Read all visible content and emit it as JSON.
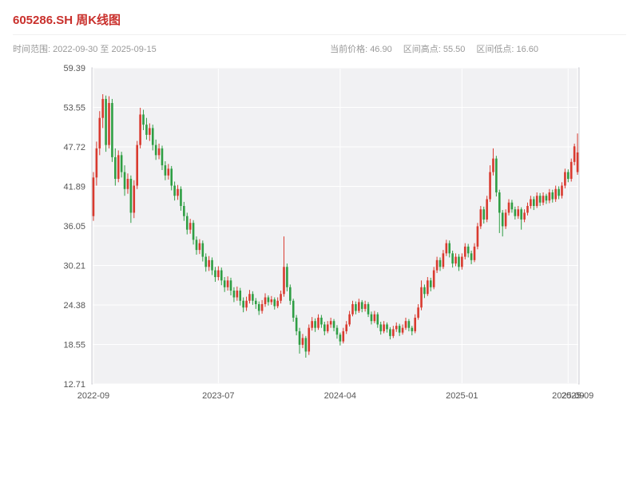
{
  "header": {
    "title": "605286.SH 周K线图",
    "time_range": "时间范围: 2022-09-30 至 2025-09-15",
    "current_price": "当前价格: 46.90",
    "range_high": "区间高点: 55.50",
    "range_low": "区间低点: 16.60"
  },
  "chart_data": {
    "type": "candlestick",
    "title": "605286.SH 周K线图",
    "frequency": "weekly",
    "date_start": "2022-09-30",
    "date_end": "2025-09-15",
    "current_price": 46.9,
    "range_high": 55.5,
    "range_low": 16.6,
    "colors": {
      "up": "#d93a2f",
      "down": "#2f9e44",
      "panel": "#f1f1f3",
      "grid": "#ffffff",
      "spine": "#cfcfd4",
      "tick_text": "#555555"
    },
    "y_axis": {
      "min": 12.71,
      "max": 59.39,
      "ticks": [
        12.71,
        18.55,
        24.38,
        30.21,
        36.05,
        41.89,
        47.72,
        53.55,
        59.39
      ]
    },
    "x_axis": {
      "ticks": [
        {
          "index": 0,
          "label": "2022-09"
        },
        {
          "index": 40,
          "label": "2023-07"
        },
        {
          "index": 79,
          "label": "2024-04"
        },
        {
          "index": 118,
          "label": "2025-01"
        },
        {
          "index": 152,
          "label": "2025-09"
        },
        {
          "index": 155,
          "label": "2025-09"
        }
      ]
    },
    "candles": [
      [
        37.5,
        44.0,
        36.8,
        43.2
      ],
      [
        43.2,
        48.5,
        42.0,
        47.5
      ],
      [
        47.5,
        53.0,
        46.5,
        52.0
      ],
      [
        52.0,
        55.5,
        50.5,
        54.8
      ],
      [
        54.8,
        55.3,
        47.0,
        48.0
      ],
      [
        48.0,
        55.2,
        47.5,
        54.2
      ],
      [
        54.2,
        54.8,
        45.5,
        46.2
      ],
      [
        46.2,
        47.5,
        42.0,
        43.0
      ],
      [
        43.0,
        47.2,
        42.5,
        46.5
      ],
      [
        46.5,
        47.0,
        43.2,
        44.0
      ],
      [
        44.0,
        45.0,
        40.5,
        41.5
      ],
      [
        41.5,
        43.8,
        40.8,
        43.0
      ],
      [
        43.0,
        43.5,
        36.5,
        38.0
      ],
      [
        38.0,
        42.8,
        37.2,
        42.0
      ],
      [
        42.0,
        48.6,
        41.5,
        48.0
      ],
      [
        48.0,
        53.5,
        47.5,
        52.5
      ],
      [
        52.5,
        53.2,
        50.2,
        51.0
      ],
      [
        51.0,
        52.0,
        48.8,
        49.5
      ],
      [
        49.5,
        51.2,
        48.6,
        50.5
      ],
      [
        50.5,
        51.0,
        47.2,
        48.0
      ],
      [
        48.0,
        48.8,
        45.8,
        46.5
      ],
      [
        46.5,
        48.2,
        45.9,
        47.5
      ],
      [
        47.5,
        47.9,
        44.3,
        45.0
      ],
      [
        45.0,
        45.6,
        42.8,
        43.5
      ],
      [
        43.5,
        45.2,
        42.9,
        44.5
      ],
      [
        44.5,
        44.9,
        41.3,
        42.0
      ],
      [
        42.0,
        42.6,
        39.8,
        40.5
      ],
      [
        40.5,
        42.1,
        39.9,
        41.5
      ],
      [
        41.5,
        41.9,
        38.3,
        39.0
      ],
      [
        39.0,
        39.6,
        36.8,
        37.5
      ],
      [
        37.5,
        38.0,
        34.8,
        35.5
      ],
      [
        35.5,
        37.1,
        34.9,
        36.5
      ],
      [
        36.5,
        36.9,
        33.3,
        34.0
      ],
      [
        34.0,
        34.5,
        31.8,
        32.5
      ],
      [
        32.5,
        34.1,
        31.9,
        33.5
      ],
      [
        33.5,
        33.9,
        30.8,
        31.5
      ],
      [
        31.5,
        32.0,
        29.3,
        30.0
      ],
      [
        30.0,
        31.6,
        29.4,
        31.0
      ],
      [
        31.0,
        31.4,
        28.8,
        29.5
      ],
      [
        29.5,
        30.0,
        27.8,
        28.5
      ],
      [
        28.5,
        30.1,
        28.0,
        29.5
      ],
      [
        29.5,
        29.9,
        27.3,
        28.0
      ],
      [
        28.0,
        28.5,
        26.3,
        27.0
      ],
      [
        27.0,
        28.6,
        26.5,
        28.0
      ],
      [
        28.0,
        28.4,
        25.8,
        26.5
      ],
      [
        26.5,
        27.0,
        24.8,
        25.5
      ],
      [
        25.5,
        27.1,
        25.0,
        26.5
      ],
      [
        26.5,
        26.9,
        24.3,
        25.0
      ],
      [
        25.0,
        25.5,
        23.3,
        24.0
      ],
      [
        24.0,
        25.6,
        23.5,
        25.0
      ],
      [
        25.0,
        26.6,
        24.6,
        26.0
      ],
      [
        26.0,
        26.4,
        24.4,
        25.0
      ],
      [
        25.0,
        25.4,
        23.8,
        24.5
      ],
      [
        24.5,
        24.9,
        22.9,
        23.5
      ],
      [
        23.5,
        25.1,
        23.1,
        24.5
      ],
      [
        24.5,
        26.1,
        24.1,
        25.5
      ],
      [
        25.5,
        25.8,
        24.3,
        24.8
      ],
      [
        24.8,
        25.7,
        24.4,
        25.2
      ],
      [
        25.2,
        25.5,
        23.7,
        24.2
      ],
      [
        24.2,
        25.5,
        23.9,
        25.0
      ],
      [
        25.0,
        26.5,
        24.6,
        26.0
      ],
      [
        26.0,
        34.5,
        25.6,
        30.0
      ],
      [
        30.0,
        30.5,
        26.4,
        27.0
      ],
      [
        27.0,
        27.4,
        24.4,
        25.0
      ],
      [
        25.0,
        25.3,
        21.9,
        22.5
      ],
      [
        22.5,
        22.9,
        19.9,
        20.5
      ],
      [
        20.5,
        21.0,
        17.2,
        18.5
      ],
      [
        18.5,
        20.1,
        18.0,
        19.5
      ],
      [
        19.5,
        19.8,
        16.6,
        17.5
      ],
      [
        17.5,
        21.5,
        17.0,
        21.0
      ],
      [
        21.0,
        22.6,
        20.6,
        22.0
      ],
      [
        22.0,
        22.4,
        20.4,
        21.0
      ],
      [
        21.0,
        23.0,
        20.7,
        22.5
      ],
      [
        22.5,
        22.9,
        21.0,
        21.5
      ],
      [
        21.5,
        21.9,
        19.9,
        20.5
      ],
      [
        20.5,
        22.0,
        20.2,
        21.5
      ],
      [
        21.5,
        22.5,
        21.0,
        22.0
      ],
      [
        22.0,
        22.3,
        20.5,
        21.0
      ],
      [
        21.0,
        21.4,
        19.4,
        20.0
      ],
      [
        20.0,
        20.3,
        18.4,
        19.0
      ],
      [
        19.0,
        21.0,
        18.7,
        20.5
      ],
      [
        20.5,
        22.0,
        20.1,
        21.5
      ],
      [
        21.5,
        23.5,
        21.2,
        23.0
      ],
      [
        23.0,
        25.0,
        22.7,
        24.5
      ],
      [
        24.5,
        24.9,
        23.0,
        23.5
      ],
      [
        23.5,
        25.3,
        23.2,
        24.8
      ],
      [
        24.8,
        25.1,
        23.3,
        23.8
      ],
      [
        23.8,
        25.0,
        23.4,
        24.5
      ],
      [
        24.5,
        24.8,
        22.6,
        23.0
      ],
      [
        23.0,
        23.4,
        21.5,
        22.0
      ],
      [
        22.0,
        23.5,
        21.7,
        23.0
      ],
      [
        23.0,
        23.3,
        21.0,
        21.5
      ],
      [
        21.5,
        21.9,
        20.0,
        20.5
      ],
      [
        20.5,
        22.0,
        20.2,
        21.5
      ],
      [
        21.5,
        21.8,
        20.3,
        20.8
      ],
      [
        20.8,
        21.1,
        19.3,
        19.8
      ],
      [
        19.8,
        21.3,
        19.5,
        20.8
      ],
      [
        20.8,
        21.8,
        20.4,
        21.3
      ],
      [
        21.3,
        21.6,
        19.8,
        20.3
      ],
      [
        20.3,
        21.5,
        20.0,
        21.0
      ],
      [
        21.0,
        22.5,
        20.7,
        22.0
      ],
      [
        22.0,
        22.3,
        20.5,
        21.0
      ],
      [
        21.0,
        21.3,
        19.9,
        20.5
      ],
      [
        20.5,
        23.0,
        20.2,
        22.5
      ],
      [
        22.5,
        24.5,
        22.2,
        24.0
      ],
      [
        24.0,
        28.0,
        23.6,
        27.0
      ],
      [
        27.0,
        27.4,
        25.4,
        26.0
      ],
      [
        26.0,
        28.5,
        25.7,
        28.0
      ],
      [
        28.0,
        28.4,
        26.4,
        27.0
      ],
      [
        27.0,
        30.0,
        26.7,
        29.5
      ],
      [
        29.5,
        31.5,
        29.1,
        31.0
      ],
      [
        31.0,
        31.4,
        29.4,
        30.0
      ],
      [
        30.0,
        32.5,
        29.7,
        32.0
      ],
      [
        32.0,
        34.0,
        31.6,
        33.5
      ],
      [
        33.5,
        33.9,
        31.4,
        32.0
      ],
      [
        32.0,
        32.4,
        29.9,
        30.5
      ],
      [
        30.5,
        32.0,
        30.1,
        31.5
      ],
      [
        31.5,
        31.9,
        29.4,
        30.0
      ],
      [
        30.0,
        32.0,
        29.6,
        31.5
      ],
      [
        31.5,
        33.5,
        31.1,
        33.0
      ],
      [
        33.0,
        33.4,
        31.4,
        32.0
      ],
      [
        32.0,
        32.4,
        30.4,
        31.0
      ],
      [
        31.0,
        33.5,
        30.7,
        33.0
      ],
      [
        33.0,
        36.5,
        32.6,
        36.0
      ],
      [
        36.0,
        39.0,
        35.6,
        38.5
      ],
      [
        38.5,
        38.9,
        36.4,
        37.0
      ],
      [
        37.0,
        40.5,
        36.6,
        40.0
      ],
      [
        40.0,
        45.0,
        39.6,
        44.0
      ],
      [
        44.0,
        47.5,
        43.5,
        46.0
      ],
      [
        46.0,
        46.4,
        40.4,
        41.0
      ],
      [
        41.0,
        41.4,
        35.0,
        38.0
      ],
      [
        38.0,
        38.4,
        34.5,
        36.0
      ],
      [
        36.0,
        38.5,
        35.6,
        38.0
      ],
      [
        38.0,
        40.0,
        37.6,
        39.5
      ],
      [
        39.5,
        39.9,
        38.0,
        38.5
      ],
      [
        38.5,
        38.9,
        37.0,
        37.5
      ],
      [
        37.5,
        39.0,
        37.1,
        38.5
      ],
      [
        38.5,
        38.8,
        35.5,
        37.0
      ],
      [
        37.0,
        38.5,
        36.6,
        38.0
      ],
      [
        38.0,
        39.5,
        37.6,
        39.0
      ],
      [
        39.0,
        40.5,
        38.6,
        40.0
      ],
      [
        40.0,
        40.4,
        38.4,
        39.0
      ],
      [
        39.0,
        41.0,
        38.7,
        40.5
      ],
      [
        40.5,
        40.9,
        39.0,
        39.5
      ],
      [
        39.5,
        41.0,
        39.1,
        40.5
      ],
      [
        40.5,
        40.8,
        39.3,
        39.8
      ],
      [
        39.8,
        41.5,
        39.4,
        41.0
      ],
      [
        41.0,
        41.4,
        39.5,
        40.0
      ],
      [
        40.0,
        42.0,
        39.6,
        41.5
      ],
      [
        41.5,
        41.9,
        40.0,
        40.5
      ],
      [
        40.5,
        42.5,
        40.1,
        42.0
      ],
      [
        42.0,
        44.5,
        41.6,
        44.0
      ],
      [
        44.0,
        44.4,
        42.5,
        43.0
      ],
      [
        43.0,
        46.0,
        42.6,
        45.5
      ],
      [
        45.5,
        48.2,
        45.0,
        47.8
      ],
      [
        44.0,
        49.7,
        43.6,
        46.9
      ]
    ]
  }
}
